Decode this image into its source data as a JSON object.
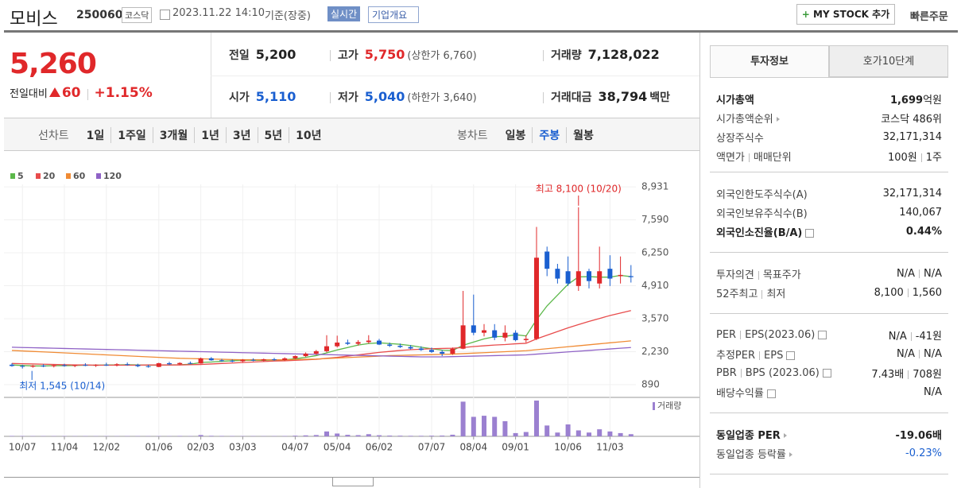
{
  "header": {
    "name": "모비스",
    "code": "250060",
    "market": "코스닥",
    "datetime": "2023.11.22 14:10",
    "basis": "기준(장중)",
    "realtime": "실시간",
    "company": "기업개요",
    "mystock": "MY STOCK 추가",
    "quick": "빠른주문"
  },
  "price": {
    "current": "5,260",
    "change_label": "전일대비",
    "change": "60",
    "rate": "+1.15%"
  },
  "summary": [
    [
      {
        "label": "전일",
        "value": "5,200"
      },
      {
        "label": "고가",
        "value": "5,750",
        "note": "(상한가 6,760)",
        "color": "#e0282a"
      },
      {
        "label": "거래량",
        "value": "7,128,022"
      }
    ],
    [
      {
        "label": "시가",
        "value": "5,110",
        "color": "#1a5fd0"
      },
      {
        "label": "저가",
        "value": "5,040",
        "note": "(하한가 3,640)",
        "color": "#1a5fd0"
      },
      {
        "label": "거래대금",
        "value": "38,794",
        "unit": "백만"
      }
    ]
  ],
  "periods": {
    "line_label": "선차트",
    "line_items": [
      "1일",
      "1주일",
      "3개월",
      "1년",
      "3년",
      "5년",
      "10년"
    ],
    "candle_label": "봉차트",
    "candle_items": [
      "일봉",
      "주봉",
      "월봉"
    ],
    "active_candle": 1
  },
  "chart": {
    "type": "candlestick",
    "up_color": "#e0282a",
    "down_color": "#1a5fd0",
    "volume_color": "#9b80d0",
    "volume_label": "거래량",
    "high_note": "최고 8,100 (10/20)",
    "low_note": "최저 1,545 (10/14)",
    "ylim": [
      630,
      9030
    ],
    "yticks": [
      {
        "value": 890,
        "label": "890"
      },
      {
        "value": 2230,
        "label": "2,230"
      },
      {
        "value": 3570,
        "label": "3,570"
      },
      {
        "value": 4910,
        "label": "4,910"
      },
      {
        "value": 6250,
        "label": "6,250"
      },
      {
        "value": 7590,
        "label": "7,590"
      },
      {
        "value": 8931,
        "label": "8,931"
      }
    ],
    "categories": [
      null,
      "10/07",
      null,
      null,
      null,
      "11/04",
      null,
      null,
      null,
      "12/02",
      null,
      null,
      null,
      null,
      "01/06",
      null,
      null,
      null,
      "02/03",
      null,
      null,
      null,
      "03/03",
      null,
      null,
      null,
      null,
      "04/07",
      null,
      null,
      null,
      "05/04",
      null,
      null,
      null,
      "06/02",
      null,
      null,
      null,
      null,
      "07/07",
      null,
      null,
      null,
      "08/04",
      null,
      null,
      null,
      "09/01",
      null,
      null,
      null,
      null,
      "10/06",
      null,
      null,
      null,
      "11/03",
      null,
      null
    ],
    "open": [
      1700,
      1650,
      1620,
      1660,
      1640,
      1680,
      1650,
      1690,
      1660,
      1700,
      1680,
      1720,
      1690,
      1640,
      1610,
      1760,
      1720,
      1770,
      1750,
      1960,
      1880,
      1860,
      1840,
      1900,
      1870,
      1920,
      1890,
      1960,
      2050,
      2150,
      2250,
      2450,
      2600,
      2550,
      2620,
      2680,
      2520,
      2470,
      2420,
      2360,
      2300,
      2220,
      2150,
      2350,
      3300,
      3000,
      3100,
      2800,
      3000,
      2700,
      2750,
      6300,
      5600,
      5500,
      4900,
      5500,
      5000,
      5600,
      5300,
      5300
    ],
    "high": [
      1760,
      1700,
      1690,
      1720,
      1700,
      1740,
      1700,
      1760,
      1720,
      1780,
      1760,
      1790,
      1740,
      1700,
      1780,
      1820,
      1800,
      1830,
      1990,
      2010,
      1940,
      1920,
      1930,
      1960,
      1950,
      1980,
      2000,
      2080,
      2200,
      2300,
      2900,
      2880,
      2720,
      2700,
      2900,
      2750,
      2600,
      2560,
      2500,
      2450,
      2400,
      2300,
      2400,
      4700,
      4550,
      3350,
      3350,
      3300,
      3100,
      2900,
      7300,
      6500,
      5800,
      6100,
      8100,
      5600,
      6500,
      6150,
      6100,
      5750
    ],
    "low": [
      1620,
      1545,
      1580,
      1600,
      1590,
      1620,
      1600,
      1640,
      1610,
      1650,
      1630,
      1660,
      1600,
      1580,
      1600,
      1690,
      1680,
      1720,
      1740,
      1860,
      1820,
      1800,
      1800,
      1840,
      1830,
      1860,
      1850,
      1920,
      2010,
      2100,
      2200,
      2400,
      2500,
      2480,
      2560,
      2500,
      2420,
      2380,
      2320,
      2260,
      2180,
      2050,
      2100,
      2330,
      2900,
      2850,
      2700,
      2650,
      2650,
      2600,
      2700,
      5300,
      5000,
      4900,
      4700,
      4800,
      4800,
      4900,
      5000,
      5040
    ],
    "close": [
      1650,
      1620,
      1660,
      1640,
      1680,
      1650,
      1690,
      1660,
      1700,
      1680,
      1720,
      1690,
      1640,
      1610,
      1760,
      1720,
      1770,
      1750,
      1960,
      1880,
      1860,
      1840,
      1900,
      1870,
      1920,
      1890,
      1960,
      2050,
      2150,
      2250,
      2450,
      2600,
      2550,
      2620,
      2680,
      2520,
      2470,
      2420,
      2360,
      2300,
      2220,
      2150,
      2350,
      3300,
      3000,
      3100,
      2800,
      3000,
      2700,
      2750,
      6050,
      5600,
      5200,
      5000,
      5500,
      5100,
      5500,
      5200,
      5350,
      5260
    ],
    "volume": [
      400000,
      350000,
      300000,
      300000,
      280000,
      300000,
      250000,
      300000,
      250000,
      260000,
      250000,
      280000,
      300000,
      260000,
      300000,
      250000,
      400000,
      300000,
      1200000,
      500000,
      400000,
      350000,
      300000,
      300000,
      250000,
      300000,
      350000,
      600000,
      900000,
      1200000,
      4500000,
      2600000,
      1400000,
      1100000,
      2000000,
      1000000,
      700000,
      600000,
      500000,
      500000,
      600000,
      700000,
      1500000,
      32000000,
      18000000,
      19000000,
      18000000,
      14000000,
      3000000,
      4000000,
      33000000,
      10000000,
      3500000,
      11000000,
      5500000,
      3500000,
      6500000,
      4500000,
      3000000,
      2000000
    ],
    "series": [
      {
        "name": "5",
        "color": "#5cb84a",
        "values": [
          1690,
          1670,
          1650,
          1650,
          1660,
          1660,
          1670,
          1680,
          1680,
          1690,
          1690,
          1700,
          1690,
          1680,
          1680,
          1690,
          1700,
          1720,
          1790,
          1810,
          1840,
          1860,
          1880,
          1880,
          1880,
          1890,
          1900,
          1940,
          2000,
          2070,
          2180,
          2300,
          2400,
          2500,
          2560,
          2590,
          2560,
          2530,
          2480,
          2410,
          2350,
          2290,
          2280,
          2490,
          2620,
          2750,
          2840,
          2850,
          2920,
          2870,
          3530,
          4090,
          4530,
          4970,
          5270,
          5280,
          5260,
          5260,
          5330,
          5280
        ]
      },
      {
        "name": "20",
        "color": "#e84c4c",
        "values": [
          1750,
          1740,
          1730,
          1720,
          1710,
          1700,
          1690,
          1690,
          1680,
          1680,
          1680,
          1680,
          1680,
          1690,
          1690,
          1690,
          1690,
          1700,
          1710,
          1730,
          1750,
          1770,
          1790,
          1810,
          1830,
          1850,
          1860,
          1880,
          1900,
          1920,
          1960,
          2000,
          2050,
          2100,
          2150,
          2200,
          2240,
          2280,
          2310,
          2330,
          2350,
          2360,
          2370,
          2400,
          2440,
          2470,
          2500,
          2520,
          2550,
          2570,
          2750,
          2900,
          3050,
          3200,
          3330,
          3460,
          3580,
          3700,
          3800,
          3900
        ]
      },
      {
        "name": "60",
        "color": "#f08b34",
        "values": [
          2280,
          2260,
          2240,
          2220,
          2200,
          2180,
          2160,
          2140,
          2120,
          2100,
          2080,
          2060,
          2040,
          2020,
          2000,
          1980,
          1960,
          1950,
          1940,
          1930,
          1920,
          1910,
          1900,
          1900,
          1900,
          1900,
          1900,
          1910,
          1920,
          1930,
          1950,
          1970,
          1990,
          2010,
          2030,
          2050,
          2070,
          2080,
          2090,
          2100,
          2110,
          2120,
          2130,
          2150,
          2170,
          2190,
          2210,
          2230,
          2250,
          2270,
          2310,
          2350,
          2390,
          2430,
          2470,
          2510,
          2550,
          2590,
          2630,
          2670
        ]
      },
      {
        "name": "120",
        "color": "#8f62c6",
        "values": [
          2410,
          2400,
          2390,
          2380,
          2370,
          2360,
          2350,
          2340,
          2330,
          2320,
          2310,
          2300,
          2290,
          2280,
          2270,
          2260,
          2250,
          2240,
          2230,
          2220,
          2210,
          2200,
          2190,
          2180,
          2170,
          2160,
          2150,
          2140,
          2130,
          2120,
          2110,
          2100,
          2090,
          2080,
          2070,
          2060,
          2050,
          2040,
          2030,
          2020,
          2020,
          2020,
          2030,
          2040,
          2050,
          2060,
          2070,
          2080,
          2090,
          2100,
          2130,
          2160,
          2190,
          2220,
          2250,
          2280,
          2310,
          2340,
          2370,
          2400
        ]
      }
    ]
  },
  "invest": {
    "tabs": [
      "투자정보",
      "호가10단계"
    ],
    "active_tab": 0,
    "groups": [
      [
        {
          "label": [
            "시가총액"
          ],
          "value": [
            "1,699",
            "억원"
          ],
          "strong": true
        },
        {
          "label": [
            "시가총액순위"
          ],
          "arrow": true,
          "value": [
            "코스닥 486위"
          ]
        },
        {
          "label": [
            "상장주식수"
          ],
          "value": [
            "32,171,314"
          ]
        },
        {
          "label": [
            "액면가",
            "매매단위"
          ],
          "value": [
            "100원",
            "1주"
          ]
        }
      ],
      [
        {
          "label": [
            "외국인한도주식수(A)"
          ],
          "value": [
            "32,171,314"
          ]
        },
        {
          "label": [
            "외국인보유주식수(B)"
          ],
          "value": [
            "140,067"
          ]
        },
        {
          "label": [
            "외국인소진율(B/A)"
          ],
          "help": true,
          "value": [
            "0.44%"
          ],
          "strong": true
        }
      ],
      [
        {
          "label": [
            "투자의견",
            "목표주가"
          ],
          "value": [
            "N/A",
            "N/A"
          ]
        },
        {
          "label": [
            "52주최고",
            "최저"
          ],
          "value": [
            "8,100",
            "1,560"
          ]
        }
      ],
      [
        {
          "label": [
            "PER",
            "EPS(2023.06)"
          ],
          "help": true,
          "value": [
            "N/A",
            "-41원"
          ]
        },
        {
          "label": [
            "추정PER",
            "EPS"
          ],
          "help": true,
          "value": [
            "N/A",
            "N/A"
          ]
        },
        {
          "label": [
            "PBR",
            "BPS (2023.06)"
          ],
          "help": true,
          "value": [
            "7.43배",
            "708원"
          ]
        },
        {
          "label": [
            "배당수익률"
          ],
          "help": true,
          "value": [
            "N/A"
          ]
        }
      ],
      [
        {
          "label": [
            "동일업종 PER"
          ],
          "arrow": true,
          "value": [
            "-19.06배"
          ],
          "strong": true
        },
        {
          "label": [
            "동일업종 등락률"
          ],
          "arrow": true,
          "value": [
            "-0.23%"
          ],
          "value_color": "#1a5fd0"
        }
      ]
    ]
  }
}
